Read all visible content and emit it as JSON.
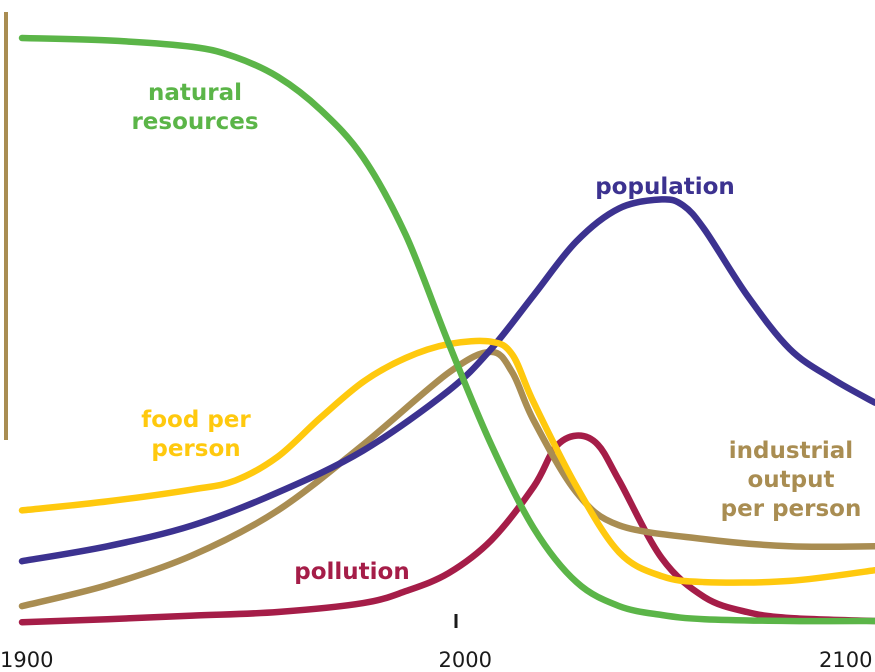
{
  "chart_data": {
    "type": "line",
    "title": "",
    "xlabel": "",
    "ylabel": "",
    "xlim": [
      1900,
      2100
    ],
    "ylim": [
      0,
      100
    ],
    "x_ticks": [
      "1900",
      "2000",
      "2100"
    ],
    "series": [
      {
        "name": "natural resources",
        "color": "#5bb548",
        "label_lines": [
          "natural",
          "resources"
        ],
        "points": [
          [
            1900,
            98
          ],
          [
            1920,
            97.6
          ],
          [
            1940,
            96.5
          ],
          [
            1950,
            94.8
          ],
          [
            1960,
            91.5
          ],
          [
            1970,
            86
          ],
          [
            1980,
            78
          ],
          [
            1990,
            65
          ],
          [
            2000,
            47
          ],
          [
            2010,
            30
          ],
          [
            2020,
            16
          ],
          [
            2030,
            7
          ],
          [
            2040,
            3
          ],
          [
            2050,
            1.5
          ],
          [
            2060,
            0.8
          ],
          [
            2080,
            0.5
          ],
          [
            2100,
            0.5
          ]
        ]
      },
      {
        "name": "population",
        "color": "#3c3290",
        "label_lines": [
          "population"
        ],
        "points": [
          [
            1900,
            10.5
          ],
          [
            1920,
            13
          ],
          [
            1940,
            16.5
          ],
          [
            1960,
            22
          ],
          [
            1980,
            29
          ],
          [
            2000,
            39
          ],
          [
            2010,
            46
          ],
          [
            2020,
            55
          ],
          [
            2030,
            64
          ],
          [
            2040,
            69.5
          ],
          [
            2050,
            71
          ],
          [
            2055,
            70
          ],
          [
            2060,
            66
          ],
          [
            2070,
            55
          ],
          [
            2080,
            46
          ],
          [
            2090,
            41
          ],
          [
            2100,
            37
          ]
        ]
      },
      {
        "name": "food per person",
        "color": "#ffc90e",
        "label_lines": [
          "food per",
          "person"
        ],
        "points": [
          [
            1900,
            19
          ],
          [
            1920,
            20.5
          ],
          [
            1940,
            22.5
          ],
          [
            1950,
            24
          ],
          [
            1960,
            28
          ],
          [
            1970,
            34.5
          ],
          [
            1980,
            40.5
          ],
          [
            1990,
            44.5
          ],
          [
            2000,
            46.8
          ],
          [
            2010,
            47.2
          ],
          [
            2015,
            45
          ],
          [
            2020,
            37
          ],
          [
            2030,
            23
          ],
          [
            2040,
            12
          ],
          [
            2050,
            8
          ],
          [
            2060,
            7
          ],
          [
            2080,
            7.2
          ],
          [
            2100,
            9
          ]
        ]
      },
      {
        "name": "industrial output per person",
        "color": "#a98d52",
        "label_lines": [
          "industrial",
          "output",
          "per person"
        ],
        "points": [
          [
            1900,
            3
          ],
          [
            1920,
            6.5
          ],
          [
            1940,
            11.5
          ],
          [
            1960,
            19
          ],
          [
            1980,
            30
          ],
          [
            2000,
            42
          ],
          [
            2010,
            45.5
          ],
          [
            2015,
            42
          ],
          [
            2020,
            34
          ],
          [
            2030,
            22
          ],
          [
            2040,
            16.5
          ],
          [
            2060,
            14.2
          ],
          [
            2080,
            13
          ],
          [
            2100,
            13
          ]
        ]
      },
      {
        "name": "pollution",
        "color": "#a51d48",
        "label_lines": [
          "pollution"
        ],
        "points": [
          [
            1900,
            0.3
          ],
          [
            1920,
            0.8
          ],
          [
            1940,
            1.4
          ],
          [
            1960,
            2
          ],
          [
            1980,
            3.5
          ],
          [
            1990,
            5.5
          ],
          [
            2000,
            8.5
          ],
          [
            2010,
            14
          ],
          [
            2020,
            23
          ],
          [
            2025,
            29.5
          ],
          [
            2030,
            31.5
          ],
          [
            2035,
            30
          ],
          [
            2040,
            24
          ],
          [
            2050,
            11
          ],
          [
            2060,
            4.5
          ],
          [
            2070,
            2
          ],
          [
            2080,
            1
          ],
          [
            2100,
            0.5
          ]
        ]
      }
    ]
  }
}
